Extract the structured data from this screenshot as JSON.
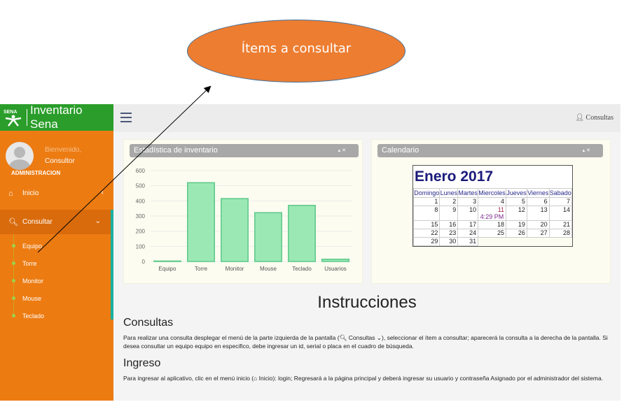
{
  "annotation": {
    "callout_text": "Ítems a consultar"
  },
  "brand": {
    "title": "Inventario Sena",
    "logo_label": "SENA"
  },
  "user": {
    "welcome": "Bienvenido,",
    "name": "Consultor",
    "role": "ADMINISTRACION"
  },
  "menu": [
    {
      "label": "Inicio",
      "icon": "home-icon"
    },
    {
      "label": "Consultar",
      "icon": "search-icon"
    }
  ],
  "submenu": [
    "Equipo",
    "Torre",
    "Monitor",
    "Mouse",
    "Teclado"
  ],
  "topbar": {
    "user_menu": "Consultas",
    "icon": "user-icon"
  },
  "stats_panel": {
    "title": "Estadística de inventario"
  },
  "calendar_panel": {
    "title": "Calendario"
  },
  "chart_data": {
    "type": "bar",
    "categories": [
      "Equipo",
      "Torre",
      "Monitor",
      "Mouse",
      "Teclado",
      "Usuarios"
    ],
    "values": [
      3,
      520,
      415,
      322,
      370,
      15
    ],
    "ylim": [
      0,
      600
    ],
    "yticks": [
      0,
      100,
      200,
      300,
      400,
      500,
      600
    ],
    "bar_color": "#9ce8b4",
    "bar_stroke": "#5bc889",
    "grid": true
  },
  "calendar": {
    "title": "Enero 2017",
    "days": [
      "Domingo",
      "Lunes",
      "Martes",
      "Miercoles",
      "Jueves",
      "Viernes",
      "Sabado"
    ],
    "weeks": [
      [
        "1",
        "2",
        "3",
        "4",
        "5",
        "6",
        "7"
      ],
      [
        "8",
        "9",
        "10",
        "11",
        "12",
        "13",
        "14"
      ],
      [
        "15",
        "16",
        "17",
        "18",
        "19",
        "20",
        "21"
      ],
      [
        "22",
        "23",
        "24",
        "25",
        "26",
        "27",
        "28"
      ],
      [
        "29",
        "30",
        "31",
        "",
        "",
        "",
        ""
      ]
    ],
    "today": "11",
    "event_time": "4:29 PM"
  },
  "instructions": {
    "title": "Instrucciones",
    "s1_title": "Consultas",
    "s1_a": "Para realizar una consulta desplegar el menú de la parte izquierda de la pantalla (",
    "s1_b": "Consultas",
    "s1_c": "), seleccionar el ítem a consultar; aparecerá la consulta a la derecha de la pantalla. Si desea consultar un equipo equipo en especifico, debe ingresar un id, serial o placa en el cuadro de búsqueda.",
    "s2_title": "Ingreso",
    "s2_a": "Para ingresar al aplicativo, clic en el menú inicio (",
    "s2_b": "Inicio",
    "s2_c": "): login; Regresará a la página principal y deberá ingresar su usuario y contraseña Asignado por el administrador del sistema."
  }
}
